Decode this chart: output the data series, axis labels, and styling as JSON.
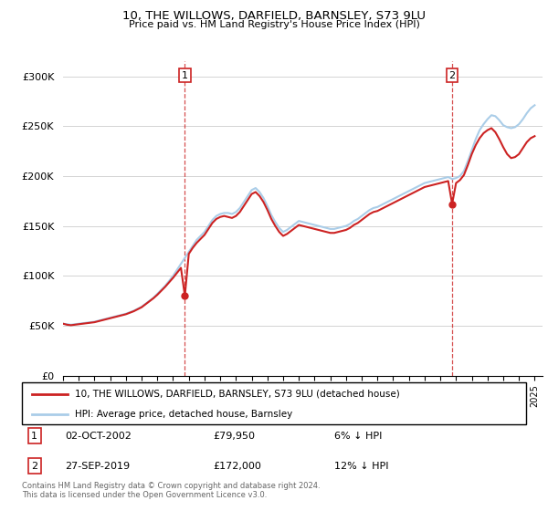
{
  "title": "10, THE WILLOWS, DARFIELD, BARNSLEY, S73 9LU",
  "subtitle": "Price paid vs. HM Land Registry's House Price Index (HPI)",
  "ylabel_ticks": [
    "£0",
    "£50K",
    "£100K",
    "£150K",
    "£200K",
    "£250K",
    "£300K"
  ],
  "ytick_values": [
    0,
    50000,
    100000,
    150000,
    200000,
    250000,
    300000
  ],
  "ylim": [
    0,
    315000
  ],
  "xlim_start": 1995.0,
  "xlim_end": 2025.5,
  "hpi_color": "#aacde8",
  "price_color": "#cc2222",
  "bg_color": "#f0f0f0",
  "transaction1": {
    "year_float": 2002.75,
    "price": 79950,
    "label": "1"
  },
  "transaction2": {
    "year_float": 2019.75,
    "price": 172000,
    "label": "2"
  },
  "legend_line1": "10, THE WILLOWS, DARFIELD, BARNSLEY, S73 9LU (detached house)",
  "legend_line2": "HPI: Average price, detached house, Barnsley",
  "footer1": "Contains HM Land Registry data © Crown copyright and database right 2024.",
  "footer2": "This data is licensed under the Open Government Licence v3.0.",
  "table_row1": [
    "1",
    "02-OCT-2002",
    "£79,950",
    "6% ↓ HPI"
  ],
  "table_row2": [
    "2",
    "27-SEP-2019",
    "£172,000",
    "12% ↓ HPI"
  ],
  "hpi_data": [
    [
      1995.0,
      52000
    ],
    [
      1995.25,
      51500
    ],
    [
      1995.5,
      51000
    ],
    [
      1995.75,
      51500
    ],
    [
      1996.0,
      52000
    ],
    [
      1996.25,
      52500
    ],
    [
      1996.5,
      53000
    ],
    [
      1996.75,
      53500
    ],
    [
      1997.0,
      54000
    ],
    [
      1997.25,
      55000
    ],
    [
      1997.5,
      56000
    ],
    [
      1997.75,
      57000
    ],
    [
      1998.0,
      58000
    ],
    [
      1998.25,
      59000
    ],
    [
      1998.5,
      60000
    ],
    [
      1998.75,
      61000
    ],
    [
      1999.0,
      62000
    ],
    [
      1999.25,
      63500
    ],
    [
      1999.5,
      65000
    ],
    [
      1999.75,
      67000
    ],
    [
      2000.0,
      69000
    ],
    [
      2000.25,
      72000
    ],
    [
      2000.5,
      75000
    ],
    [
      2000.75,
      78000
    ],
    [
      2001.0,
      82000
    ],
    [
      2001.25,
      86000
    ],
    [
      2001.5,
      90000
    ],
    [
      2001.75,
      95000
    ],
    [
      2002.0,
      100000
    ],
    [
      2002.25,
      106000
    ],
    [
      2002.5,
      112000
    ],
    [
      2002.75,
      118000
    ],
    [
      2003.0,
      124000
    ],
    [
      2003.25,
      130000
    ],
    [
      2003.5,
      136000
    ],
    [
      2003.75,
      140000
    ],
    [
      2004.0,
      144000
    ],
    [
      2004.25,
      150000
    ],
    [
      2004.5,
      156000
    ],
    [
      2004.75,
      160000
    ],
    [
      2005.0,
      162000
    ],
    [
      2005.25,
      163000
    ],
    [
      2005.5,
      163000
    ],
    [
      2005.75,
      162000
    ],
    [
      2006.0,
      164000
    ],
    [
      2006.25,
      168000
    ],
    [
      2006.5,
      174000
    ],
    [
      2006.75,
      180000
    ],
    [
      2007.0,
      186000
    ],
    [
      2007.25,
      188000
    ],
    [
      2007.5,
      184000
    ],
    [
      2007.75,
      178000
    ],
    [
      2008.0,
      170000
    ],
    [
      2008.25,
      161000
    ],
    [
      2008.5,
      154000
    ],
    [
      2008.75,
      148000
    ],
    [
      2009.0,
      144000
    ],
    [
      2009.25,
      146000
    ],
    [
      2009.5,
      149000
    ],
    [
      2009.75,
      152000
    ],
    [
      2010.0,
      155000
    ],
    [
      2010.25,
      154000
    ],
    [
      2010.5,
      153000
    ],
    [
      2010.75,
      152000
    ],
    [
      2011.0,
      151000
    ],
    [
      2011.25,
      150000
    ],
    [
      2011.5,
      149000
    ],
    [
      2011.75,
      148000
    ],
    [
      2012.0,
      147000
    ],
    [
      2012.25,
      147000
    ],
    [
      2012.5,
      148000
    ],
    [
      2012.75,
      149000
    ],
    [
      2013.0,
      150000
    ],
    [
      2013.25,
      152000
    ],
    [
      2013.5,
      155000
    ],
    [
      2013.75,
      157000
    ],
    [
      2014.0,
      160000
    ],
    [
      2014.25,
      163000
    ],
    [
      2014.5,
      166000
    ],
    [
      2014.75,
      168000
    ],
    [
      2015.0,
      169000
    ],
    [
      2015.25,
      171000
    ],
    [
      2015.5,
      173000
    ],
    [
      2015.75,
      175000
    ],
    [
      2016.0,
      177000
    ],
    [
      2016.25,
      179000
    ],
    [
      2016.5,
      181000
    ],
    [
      2016.75,
      183000
    ],
    [
      2017.0,
      185000
    ],
    [
      2017.25,
      187000
    ],
    [
      2017.5,
      189000
    ],
    [
      2017.75,
      191000
    ],
    [
      2018.0,
      193000
    ],
    [
      2018.25,
      194000
    ],
    [
      2018.5,
      195000
    ],
    [
      2018.75,
      196000
    ],
    [
      2019.0,
      197000
    ],
    [
      2019.25,
      198000
    ],
    [
      2019.5,
      199000
    ],
    [
      2019.75,
      197000
    ],
    [
      2020.0,
      198000
    ],
    [
      2020.25,
      200000
    ],
    [
      2020.5,
      205000
    ],
    [
      2020.75,
      215000
    ],
    [
      2021.0,
      226000
    ],
    [
      2021.25,
      237000
    ],
    [
      2021.5,
      246000
    ],
    [
      2021.75,
      252000
    ],
    [
      2022.0,
      257000
    ],
    [
      2022.25,
      261000
    ],
    [
      2022.5,
      260000
    ],
    [
      2022.75,
      256000
    ],
    [
      2023.0,
      251000
    ],
    [
      2023.25,
      249000
    ],
    [
      2023.5,
      248000
    ],
    [
      2023.75,
      249000
    ],
    [
      2024.0,
      252000
    ],
    [
      2024.25,
      257000
    ],
    [
      2024.5,
      263000
    ],
    [
      2024.75,
      268000
    ],
    [
      2025.0,
      271000
    ]
  ],
  "price_data": [
    [
      1995.0,
      52000
    ],
    [
      1995.25,
      51000
    ],
    [
      1995.5,
      50500
    ],
    [
      1995.75,
      51000
    ],
    [
      1996.0,
      51500
    ],
    [
      1996.25,
      52000
    ],
    [
      1996.5,
      52500
    ],
    [
      1996.75,
      53000
    ],
    [
      1997.0,
      53500
    ],
    [
      1997.25,
      54500
    ],
    [
      1997.5,
      55500
    ],
    [
      1997.75,
      56500
    ],
    [
      1998.0,
      57500
    ],
    [
      1998.25,
      58500
    ],
    [
      1998.5,
      59500
    ],
    [
      1998.75,
      60500
    ],
    [
      1999.0,
      61500
    ],
    [
      1999.25,
      63000
    ],
    [
      1999.5,
      64500
    ],
    [
      1999.75,
      66500
    ],
    [
      2000.0,
      68500
    ],
    [
      2000.25,
      71500
    ],
    [
      2000.5,
      74500
    ],
    [
      2000.75,
      77500
    ],
    [
      2001.0,
      81000
    ],
    [
      2001.25,
      85000
    ],
    [
      2001.5,
      89000
    ],
    [
      2001.75,
      93500
    ],
    [
      2002.0,
      98000
    ],
    [
      2002.25,
      103000
    ],
    [
      2002.5,
      108000
    ],
    [
      2002.75,
      79950
    ],
    [
      2003.0,
      122000
    ],
    [
      2003.25,
      128000
    ],
    [
      2003.5,
      133000
    ],
    [
      2003.75,
      137000
    ],
    [
      2004.0,
      141000
    ],
    [
      2004.25,
      147000
    ],
    [
      2004.5,
      153000
    ],
    [
      2004.75,
      157000
    ],
    [
      2005.0,
      159000
    ],
    [
      2005.25,
      160000
    ],
    [
      2005.5,
      159000
    ],
    [
      2005.75,
      158000
    ],
    [
      2006.0,
      160000
    ],
    [
      2006.25,
      164000
    ],
    [
      2006.5,
      170000
    ],
    [
      2006.75,
      176000
    ],
    [
      2007.0,
      182000
    ],
    [
      2007.25,
      184000
    ],
    [
      2007.5,
      180000
    ],
    [
      2007.75,
      174000
    ],
    [
      2008.0,
      166000
    ],
    [
      2008.25,
      157000
    ],
    [
      2008.5,
      150000
    ],
    [
      2008.75,
      144000
    ],
    [
      2009.0,
      140000
    ],
    [
      2009.25,
      142000
    ],
    [
      2009.5,
      145000
    ],
    [
      2009.75,
      148000
    ],
    [
      2010.0,
      151000
    ],
    [
      2010.25,
      150000
    ],
    [
      2010.5,
      149000
    ],
    [
      2010.75,
      148000
    ],
    [
      2011.0,
      147000
    ],
    [
      2011.25,
      146000
    ],
    [
      2011.5,
      145000
    ],
    [
      2011.75,
      144000
    ],
    [
      2012.0,
      143000
    ],
    [
      2012.25,
      143000
    ],
    [
      2012.5,
      144000
    ],
    [
      2012.75,
      145000
    ],
    [
      2013.0,
      146000
    ],
    [
      2013.25,
      148000
    ],
    [
      2013.5,
      151000
    ],
    [
      2013.75,
      153000
    ],
    [
      2014.0,
      156000
    ],
    [
      2014.25,
      159000
    ],
    [
      2014.5,
      162000
    ],
    [
      2014.75,
      164000
    ],
    [
      2015.0,
      165000
    ],
    [
      2015.25,
      167000
    ],
    [
      2015.5,
      169000
    ],
    [
      2015.75,
      171000
    ],
    [
      2016.0,
      173000
    ],
    [
      2016.25,
      175000
    ],
    [
      2016.5,
      177000
    ],
    [
      2016.75,
      179000
    ],
    [
      2017.0,
      181000
    ],
    [
      2017.25,
      183000
    ],
    [
      2017.5,
      185000
    ],
    [
      2017.75,
      187000
    ],
    [
      2018.0,
      189000
    ],
    [
      2018.25,
      190000
    ],
    [
      2018.5,
      191000
    ],
    [
      2018.75,
      192000
    ],
    [
      2019.0,
      193000
    ],
    [
      2019.25,
      194000
    ],
    [
      2019.5,
      195000
    ],
    [
      2019.75,
      172000
    ],
    [
      2020.0,
      193000
    ],
    [
      2020.25,
      196000
    ],
    [
      2020.5,
      201000
    ],
    [
      2020.75,
      211000
    ],
    [
      2021.0,
      222000
    ],
    [
      2021.25,
      231000
    ],
    [
      2021.5,
      238000
    ],
    [
      2021.75,
      243000
    ],
    [
      2022.0,
      246000
    ],
    [
      2022.25,
      248000
    ],
    [
      2022.5,
      244000
    ],
    [
      2022.75,
      237000
    ],
    [
      2023.0,
      229000
    ],
    [
      2023.25,
      222000
    ],
    [
      2023.5,
      218000
    ],
    [
      2023.75,
      219000
    ],
    [
      2024.0,
      222000
    ],
    [
      2024.25,
      228000
    ],
    [
      2024.5,
      234000
    ],
    [
      2024.75,
      238000
    ],
    [
      2025.0,
      240000
    ]
  ]
}
